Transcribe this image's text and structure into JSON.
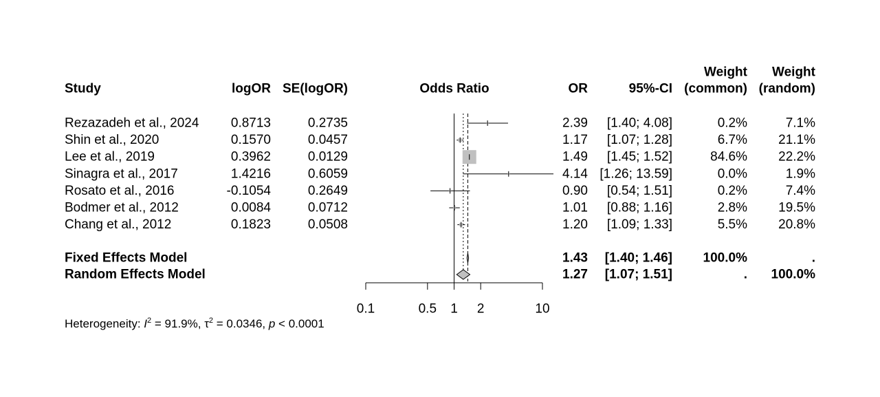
{
  "chart_data": {
    "type": "forest",
    "headers": {
      "study": "Study",
      "logor": "logOR",
      "se": "SE(logOR)",
      "plot": "Odds Ratio",
      "or": "OR",
      "ci": "95%-CI",
      "w_common_1": "Weight",
      "w_common_2": "(common)",
      "w_random_1": "Weight",
      "w_random_2": "(random)"
    },
    "studies": [
      {
        "study": "Rezazadeh et al., 2024",
        "logor": "0.8713",
        "se": "0.2735",
        "or": 2.39,
        "lower": 1.4,
        "upper": 4.08,
        "or_text": "2.39",
        "ci_text": "[1.40;  4.08]",
        "w_common": "0.2%",
        "w_random": "7.1%"
      },
      {
        "study": "Shin et al., 2020",
        "logor": "0.1570",
        "se": "0.0457",
        "or": 1.17,
        "lower": 1.07,
        "upper": 1.28,
        "or_text": "1.17",
        "ci_text": "[1.07;  1.28]",
        "w_common": "6.7%",
        "w_random": "21.1%"
      },
      {
        "study": "Lee et al., 2019",
        "logor": "0.3962",
        "se": "0.0129",
        "or": 1.49,
        "lower": 1.45,
        "upper": 1.52,
        "or_text": "1.49",
        "ci_text": "[1.45;  1.52]",
        "w_common": "84.6%",
        "w_random": "22.2%"
      },
      {
        "study": "Sinagra et al., 2017",
        "logor": "1.4216",
        "se": "0.6059",
        "or": 4.14,
        "lower": 1.26,
        "upper": 13.59,
        "or_text": "4.14",
        "ci_text": "[1.26; 13.59]",
        "w_common": "0.0%",
        "w_random": "1.9%"
      },
      {
        "study": "Rosato et al., 2016",
        "logor": "-0.1054",
        "se": "0.2649",
        "or": 0.9,
        "lower": 0.54,
        "upper": 1.51,
        "or_text": "0.90",
        "ci_text": "[0.54;  1.51]",
        "w_common": "0.2%",
        "w_random": "7.4%"
      },
      {
        "study": "Bodmer et al., 2012",
        "logor": "0.0084",
        "se": "0.0712",
        "or": 1.01,
        "lower": 0.88,
        "upper": 1.16,
        "or_text": "1.01",
        "ci_text": "[0.88;  1.16]",
        "w_common": "2.8%",
        "w_random": "19.5%"
      },
      {
        "study": "Chang et al., 2012",
        "logor": "0.1823",
        "se": "0.0508",
        "or": 1.2,
        "lower": 1.09,
        "upper": 1.33,
        "or_text": "1.20",
        "ci_text": "[1.09;  1.33]",
        "w_common": "5.5%",
        "w_random": "20.8%"
      }
    ],
    "models": [
      {
        "label": "Fixed Effects Model",
        "or": 1.43,
        "lower": 1.4,
        "upper": 1.46,
        "or_text": "1.43",
        "ci_text": "[1.40;  1.46]",
        "w_common": "100.0%",
        "w_random": "."
      },
      {
        "label": "Random Effects Model",
        "or": 1.27,
        "lower": 1.07,
        "upper": 1.51,
        "or_text": "1.27",
        "ci_text": "[1.07;  1.51]",
        "w_common": ".",
        "w_random": "100.0%"
      }
    ],
    "x_axis": {
      "scale": "log",
      "ticks": [
        0.1,
        0.5,
        1,
        2,
        10
      ],
      "tick_labels": [
        "0.1",
        "0.5",
        "1",
        "2",
        "10"
      ],
      "range": [
        0.1,
        10
      ],
      "null_value": 1
    },
    "heterogeneity": {
      "prefix": "Heterogeneity: ",
      "i2_symbol": "I",
      "i2_value": " = 91.9%, ",
      "tau_symbol": "τ",
      "tau_value": " = 0.0346, ",
      "p_symbol": "p",
      "p_value": " < 0.0001"
    },
    "colors": {
      "box": "#c0c0c0",
      "diamond": "#c0c0c0",
      "line": "#000000"
    }
  }
}
